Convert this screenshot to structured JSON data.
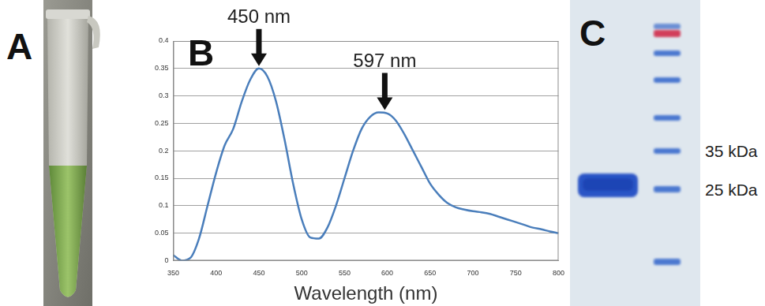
{
  "chart_data": {
    "type": "line",
    "x_label": "Wavelength (nm)",
    "x": [
      350,
      360,
      370,
      380,
      390,
      400,
      410,
      420,
      430,
      440,
      450,
      460,
      470,
      480,
      490,
      500,
      510,
      520,
      530,
      540,
      550,
      560,
      570,
      580,
      590,
      600,
      610,
      620,
      630,
      640,
      650,
      660,
      670,
      680,
      690,
      700,
      710,
      720,
      730,
      740,
      750,
      760,
      770,
      780,
      790,
      800
    ],
    "values": [
      0.01,
      0.0,
      0.005,
      0.04,
      0.1,
      0.16,
      0.21,
      0.24,
      0.29,
      0.33,
      0.35,
      0.335,
      0.29,
      0.22,
      0.14,
      0.075,
      0.042,
      0.04,
      0.06,
      0.1,
      0.15,
      0.2,
      0.24,
      0.262,
      0.27,
      0.268,
      0.255,
      0.23,
      0.2,
      0.17,
      0.14,
      0.12,
      0.105,
      0.097,
      0.093,
      0.09,
      0.088,
      0.085,
      0.08,
      0.075,
      0.07,
      0.065,
      0.06,
      0.057,
      0.053,
      0.05
    ],
    "color": "#4a7ebb",
    "marker": "none",
    "xlim": [
      350,
      800
    ],
    "xticks": [
      350,
      400,
      450,
      500,
      550,
      600,
      650,
      700,
      750,
      800
    ],
    "ylim": [
      0,
      0.4
    ],
    "yticks": [
      0,
      0.05,
      0.1,
      0.15,
      0.2,
      0.25,
      0.3,
      0.35,
      0.4
    ],
    "grid": true,
    "annotations": [
      {
        "text": "450 nm",
        "x": 450,
        "y": 0.35
      },
      {
        "text": "597 nm",
        "x": 597,
        "y": 0.27
      }
    ]
  },
  "panel_labels": [
    "A",
    "B",
    "C"
  ],
  "gel": {
    "marker_labels": [
      "35 kDa",
      "25 kDa"
    ]
  }
}
